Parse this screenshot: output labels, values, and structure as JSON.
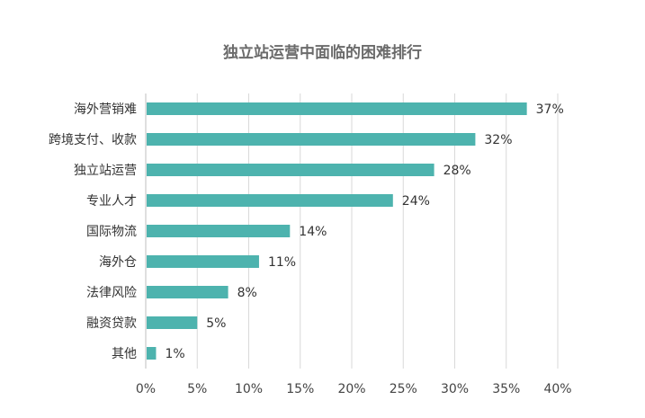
{
  "chart_data": {
    "type": "bar",
    "orientation": "horizontal",
    "title": "独立站运营中面临的困难排行",
    "categories": [
      "海外营销难",
      "跨境支付、收款",
      "独立站运营",
      "专业人才",
      "国际物流",
      "海外仓",
      "法律风险",
      "融资贷款",
      "其他"
    ],
    "values": [
      37,
      32,
      28,
      24,
      14,
      11,
      8,
      5,
      1
    ],
    "data_labels": [
      "37%",
      "32%",
      "28%",
      "24%",
      "14%",
      "11%",
      "8%",
      "5%",
      "1%"
    ],
    "xlim": [
      0,
      40
    ],
    "x_ticks": [
      0,
      5,
      10,
      15,
      20,
      25,
      30,
      35,
      40
    ],
    "x_tick_labels": [
      "0%",
      "5%",
      "10%",
      "15%",
      "20%",
      "25%",
      "30%",
      "35%",
      "40%"
    ],
    "grid": "vertical",
    "legend": "none",
    "bar_color": "#4db3ae",
    "grid_color": "#d9d9d9"
  }
}
